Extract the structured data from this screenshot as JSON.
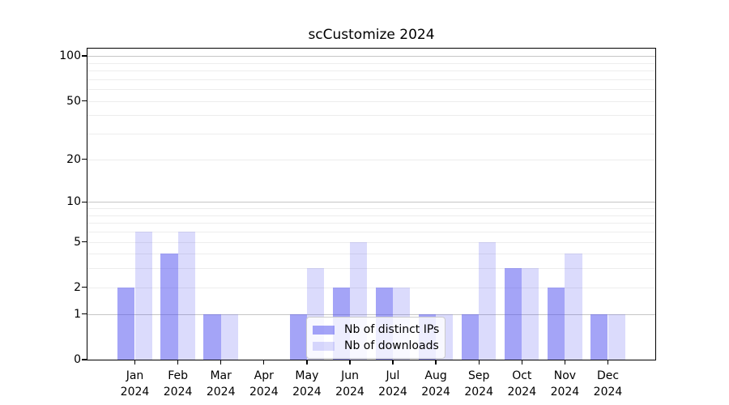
{
  "chart_data": {
    "type": "bar",
    "title": "scCustomize 2024",
    "categories": [
      "Jan",
      "Feb",
      "Mar",
      "Apr",
      "May",
      "Jun",
      "Jul",
      "Aug",
      "Sep",
      "Oct",
      "Nov",
      "Dec"
    ],
    "category_year": "2024",
    "series": [
      {
        "name": "Nb of distinct IPs",
        "key": "distinct-ips",
        "color": "#4949f0",
        "alpha": 0.5,
        "values": [
          2,
          4,
          1,
          0,
          1,
          2,
          2,
          1,
          1,
          3,
          2,
          1
        ]
      },
      {
        "name": "Nb of downloads",
        "key": "downloads",
        "color": "#4949f0",
        "alpha": 0.2,
        "values": [
          6,
          6,
          1,
          0,
          3,
          5,
          2,
          1,
          5,
          3,
          4,
          1
        ]
      }
    ],
    "yscale": "log1p",
    "ylim": [
      0,
      112
    ],
    "y_tick_values": [
      0,
      1,
      2,
      5,
      10,
      20,
      50,
      100
    ],
    "y_tick_labels": [
      "0",
      "1",
      "2",
      "5",
      "10",
      "20",
      "50",
      "100"
    ],
    "grid_major_values": [
      1,
      10,
      100
    ],
    "grid_minor_values": [
      2,
      3,
      4,
      5,
      6,
      7,
      8,
      9,
      20,
      30,
      40,
      50,
      60,
      70,
      80,
      90
    ],
    "grid": true,
    "legend_position": "lower center inside",
    "colors": {
      "axis": "#000000",
      "grid_major": "#c6c6c6",
      "grid_minor": "#ededed",
      "background": "#ffffff"
    }
  }
}
